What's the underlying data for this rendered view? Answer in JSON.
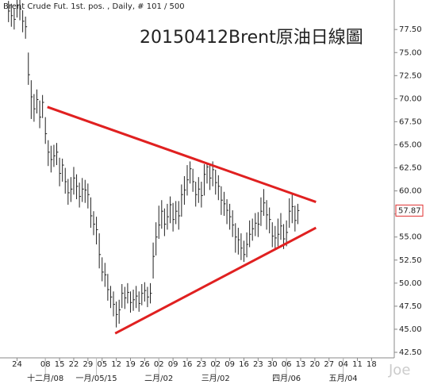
{
  "chart_data": {
    "type": "ohlc",
    "header": "Brent Crude Fut. 1st. pos. , Daily, # 101 / 500",
    "title": "20150412Brent原油日線圖",
    "watermark": "Joe",
    "color": "#222222",
    "high": [
      80.6,
      80.3,
      79.8,
      80.9,
      80.8,
      79.6,
      78.9,
      75.0,
      72.0,
      70.5,
      71.0,
      69.8,
      70.4,
      68.0,
      65.5,
      64.9,
      65.0,
      65.2,
      63.6,
      63.5,
      62.5,
      61.3,
      61.5,
      62.6,
      61.8,
      60.9,
      61.4,
      61.2,
      60.8,
      59.3,
      57.8,
      57.2,
      55.4,
      52.8,
      52.2,
      51.0,
      49.7,
      49.1,
      48.0,
      48.2,
      49.9,
      49.6,
      50.0,
      49.1,
      49.3,
      49.7,
      49.1,
      49.9,
      50.1,
      49.6,
      50.0,
      54.4,
      56.6,
      58.4,
      59.0,
      58.1,
      58.6,
      59.4,
      58.7,
      58.9,
      58.9,
      60.7,
      61.6,
      62.8,
      63.2,
      62.4,
      61.0,
      61.5,
      61.0,
      62.9,
      63.0,
      62.8,
      63.2,
      62.3,
      61.7,
      60.5,
      59.9,
      59.1,
      58.6,
      57.9,
      56.5,
      56.0,
      55.4,
      54.6,
      55.5,
      56.8,
      57.0,
      57.6,
      57.7,
      59.3,
      60.2,
      59.0,
      58.2,
      56.6,
      56.2,
      57.0,
      57.6,
      56.4,
      56.8,
      59.2,
      59.6,
      58.4,
      58.6
    ],
    "low": [
      78.3,
      77.8,
      77.5,
      78.8,
      78.5,
      77.2,
      76.5,
      71.5,
      67.8,
      67.5,
      68.4,
      66.8,
      67.9,
      65.1,
      62.7,
      62.0,
      62.6,
      62.8,
      60.5,
      61.0,
      59.7,
      58.5,
      58.8,
      59.6,
      59.1,
      58.2,
      58.8,
      58.7,
      58.1,
      56.0,
      55.2,
      54.2,
      51.6,
      50.2,
      49.6,
      48.1,
      47.3,
      46.4,
      45.2,
      45.6,
      47.3,
      47.2,
      47.8,
      46.8,
      47.0,
      47.3,
      46.9,
      47.6,
      48.0,
      47.4,
      47.8,
      50.5,
      53.0,
      54.8,
      55.9,
      55.1,
      55.8,
      56.5,
      55.6,
      56.4,
      55.8,
      57.2,
      58.5,
      59.5,
      60.8,
      59.9,
      58.3,
      58.7,
      58.2,
      59.5,
      60.8,
      60.1,
      60.5,
      59.6,
      59.0,
      57.4,
      57.3,
      56.4,
      55.8,
      55.0,
      53.3,
      53.1,
      52.5,
      52.3,
      52.8,
      53.9,
      54.6,
      55.1,
      55.0,
      56.2,
      57.3,
      55.8,
      55.4,
      53.9,
      53.6,
      54.0,
      54.7,
      53.7,
      54.0,
      56.0,
      56.5,
      55.6,
      56.4
    ],
    "close": [
      79.5,
      79.0,
      78.6,
      80.1,
      79.7,
      78.4,
      77.8,
      72.6,
      70.2,
      68.9,
      69.9,
      68.0,
      69.6,
      66.2,
      64.2,
      63.4,
      63.8,
      64.2,
      61.9,
      62.8,
      61.0,
      59.8,
      60.2,
      61.4,
      60.5,
      59.4,
      60.2,
      60.1,
      59.6,
      57.3,
      56.4,
      55.8,
      53.1,
      51.2,
      50.9,
      49.3,
      48.5,
      47.7,
      46.6,
      47.1,
      48.9,
      48.4,
      49.0,
      47.9,
      48.2,
      48.6,
      47.8,
      48.9,
      49.2,
      48.5,
      48.9,
      52.9,
      55.0,
      56.3,
      57.8,
      56.4,
      57.2,
      58.5,
      56.9,
      57.8,
      57.3,
      59.6,
      60.1,
      61.2,
      62.4,
      61.0,
      59.6,
      60.2,
      59.5,
      61.8,
      62.6,
      61.4,
      62.3,
      60.9,
      60.5,
      59.0,
      58.6,
      57.9,
      57.2,
      56.3,
      55.0,
      54.7,
      53.8,
      53.1,
      54.2,
      55.3,
      55.9,
      56.5,
      56.4,
      57.8,
      58.7,
      57.4,
      56.9,
      55.1,
      54.9,
      55.3,
      56.2,
      54.8,
      55.5,
      57.8,
      58.3,
      56.8,
      57.87
    ],
    "last_color": "#e03030",
    "trendlines": [
      {
        "color": "#e02020",
        "x": [
          13.7,
          108.4
        ],
        "y": [
          69.1,
          58.8
        ]
      },
      {
        "color": "#e02020",
        "x": [
          37.6,
          108.4
        ],
        "y": [
          44.55,
          56.0
        ]
      }
    ],
    "xlim": [
      -3,
      136
    ],
    "ylim": [
      41.9,
      80.7
    ],
    "xticks": [
      {
        "value": 3,
        "label": "24"
      },
      {
        "value": 13,
        "label": "08"
      },
      {
        "value": 18,
        "label": "15"
      },
      {
        "value": 23,
        "label": "22"
      },
      {
        "value": 28,
        "label": "29"
      },
      {
        "value": 33,
        "label": "05"
      },
      {
        "value": 38,
        "label": "12"
      },
      {
        "value": 43,
        "label": "19"
      },
      {
        "value": 48,
        "label": "26"
      },
      {
        "value": 53,
        "label": "02"
      },
      {
        "value": 58,
        "label": "09"
      },
      {
        "value": 63,
        "label": "16"
      },
      {
        "value": 68,
        "label": "23"
      },
      {
        "value": 73,
        "label": "02"
      },
      {
        "value": 78,
        "label": "09"
      },
      {
        "value": 83,
        "label": "16"
      },
      {
        "value": 88,
        "label": "23"
      },
      {
        "value": 93,
        "label": "30"
      },
      {
        "value": 98,
        "label": "06"
      },
      {
        "value": 103,
        "label": "13"
      },
      {
        "value": 108,
        "label": "20"
      },
      {
        "value": 113,
        "label": "27"
      },
      {
        "value": 118,
        "label": "04"
      },
      {
        "value": 123,
        "label": "11"
      },
      {
        "value": 128,
        "label": "18"
      }
    ],
    "xticks2": [
      {
        "value": 13,
        "label": "十二月/08"
      },
      {
        "value": 31,
        "label": "一月/05/15"
      },
      {
        "value": 53,
        "label": "二月/02"
      },
      {
        "value": 73,
        "label": "三月/02"
      },
      {
        "value": 98,
        "label": "四月/06"
      },
      {
        "value": 118,
        "label": "五月/04"
      }
    ],
    "yticks": [
      {
        "value": 42.5,
        "label": "42.50"
      },
      {
        "value": 45,
        "label": "45.00"
      },
      {
        "value": 47.5,
        "label": "47.50"
      },
      {
        "value": 50,
        "label": "50.00"
      },
      {
        "value": 52.5,
        "label": "52.50"
      },
      {
        "value": 55,
        "label": "55.00"
      },
      {
        "value": 57.5,
        "label": "57.50"
      },
      {
        "value": 60,
        "label": "60.00"
      },
      {
        "value": 62.5,
        "label": "62.50"
      },
      {
        "value": 65,
        "label": "65.00"
      },
      {
        "value": 67.5,
        "label": "67.50"
      },
      {
        "value": 70,
        "label": "70.00"
      },
      {
        "value": 72.5,
        "label": "72.50"
      },
      {
        "value": 75,
        "label": "75.00"
      },
      {
        "value": 77.5,
        "label": "77.50"
      }
    ]
  }
}
